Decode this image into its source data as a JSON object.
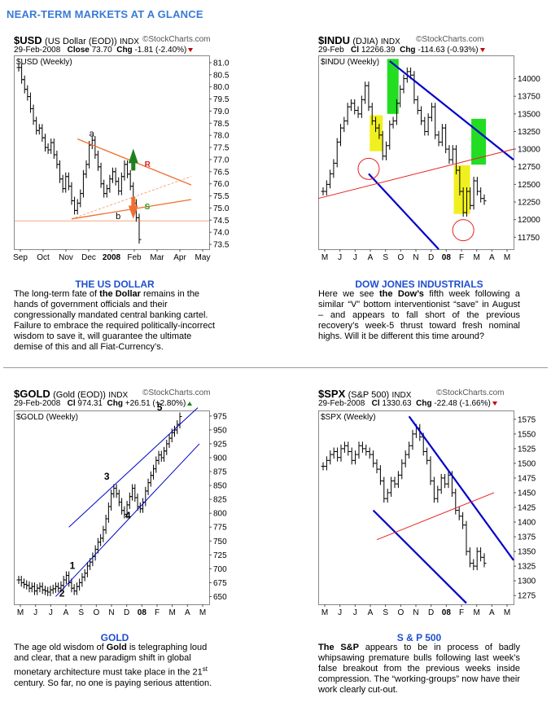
{
  "page_title": "NEAR-TERM MARKETS AT A GLANCE",
  "panels": [
    {
      "symbol": "$USD",
      "desc": "(US Dollar (EOD))",
      "exchange": "INDX",
      "source": "©StockCharts.com",
      "date": "29-Feb-2008",
      "price_label": "Close",
      "price": "73.70",
      "chg_label": "Chg",
      "chg": "-1.81 (-2.40%)",
      "chart_label": "$USD (Weekly)",
      "caption": "THE US DOLLAR",
      "body": [
        {
          "t": "The long-term fate of "
        },
        {
          "t": "the Dollar",
          "b": true
        },
        {
          "t": " remains in the hands of government officials and their congressionally mandated central banking cartel.  Failure to embrace the required politically-incorrect wisdom to save it, will guarantee the ultimate demise of this and all Fiat-Currency’s."
        }
      ]
    },
    {
      "symbol": "$INDU",
      "desc": "(DJIA)",
      "exchange": "INDX",
      "source": "©StockCharts.com",
      "date": "29-Feb",
      "price_label": "Cl",
      "price": "12266.39",
      "chg_label": "Chg",
      "chg": "-114.63 (-0.93%)",
      "chart_label": "$INDU (Weekly)",
      "caption": "DOW JONES INDUSTRIALS",
      "body": [
        {
          "t": "Here we see "
        },
        {
          "t": "the Dow’s",
          "b": true
        },
        {
          "t": " fifth week following a similar “V” bottom interventionist “save” in August – and appears to fall short of the previous recovery’s week-5 thrust toward fresh nominal highs.  Will it be different this time around?"
        }
      ]
    },
    {
      "symbol": "$GOLD",
      "desc": "(Gold (EOD))",
      "exchange": "INDX",
      "source": "©StockCharts.com",
      "date": "29-Feb-2008",
      "price_label": "Cl",
      "price": "974.31",
      "chg_label": "Chg",
      "chg": "+26.51 (+2.80%)",
      "chart_label": "$GOLD (Weekly)",
      "caption": "GOLD",
      "body": [
        {
          "t": "The age old wisdom of "
        },
        {
          "t": "Gold",
          "b": true
        },
        {
          "t": " is telegraphing loud and clear, that a new paradigm shift in global monetary architecture must take place in the 21"
        },
        {
          "t": "st",
          "sup": true
        },
        {
          "t": " century.  So far, no one is paying serious attention."
        }
      ]
    },
    {
      "symbol": "$SPX",
      "desc": "(S&P 500)",
      "exchange": "INDX",
      "source": "©StockCharts.com",
      "date": "29-Feb-2008",
      "price_label": "Cl",
      "price": "1330.63",
      "chg_label": "Chg",
      "chg": "-22.48 (-1.66%)",
      "chart_label": "$SPX (Weekly)",
      "caption": "S & P 500",
      "body": [
        {
          "t": "The S&P",
          "b": true
        },
        {
          "t": " appears to be in process of badly whipsawing premature bulls following last week’s false breakout from the previous weeks inside compression.  The “working-groups” now have their work clearly cut-out."
        }
      ]
    }
  ],
  "chart_data": [
    {
      "type": "ohlc",
      "title": "$USD (Weekly)",
      "ylim": [
        73.3,
        81.3
      ],
      "yticks": [
        81.0,
        80.5,
        80.0,
        79.5,
        79.0,
        78.5,
        78.0,
        77.5,
        77.0,
        76.5,
        76.0,
        75.5,
        75.0,
        74.5,
        74.0,
        73.5
      ],
      "xticks": [
        "Sep",
        "Oct",
        "Nov",
        "Dec",
        "2008",
        "Feb",
        "Mar",
        "Apr",
        "May"
      ],
      "closes": [
        80.8,
        80.3,
        79.9,
        79.6,
        79.1,
        78.6,
        78.2,
        78.3,
        77.9,
        77.5,
        77.4,
        77.7,
        77.2,
        76.8,
        76.2,
        75.8,
        76.3,
        75.9,
        75.3,
        74.9,
        75.2,
        75.6,
        76.4,
        76.8,
        77.6,
        77.8,
        77.2,
        76.7,
        76.0,
        75.6,
        75.8,
        76.2,
        76.5,
        76.1,
        75.7,
        76.3,
        76.8,
        76.4,
        75.9,
        75.2,
        74.6,
        73.7
      ],
      "annotations": [
        "a",
        "b",
        "R",
        "S"
      ],
      "axis_labels_right": true
    },
    {
      "type": "ohlc",
      "title": "$INDU (Weekly)",
      "ylim": [
        11580,
        14330
      ],
      "yticks": [
        14000,
        13750,
        13500,
        13250,
        13000,
        12750,
        12500,
        12250,
        12000,
        11750
      ],
      "xticks": [
        "M",
        "J",
        "J",
        "A",
        "S",
        "O",
        "N",
        "D",
        "08",
        "F",
        "M",
        "A",
        "M"
      ],
      "closes": [
        12400,
        12500,
        12650,
        12800,
        13100,
        13300,
        13400,
        13600,
        13650,
        13550,
        13500,
        13700,
        13900,
        13600,
        13400,
        13300,
        13200,
        12900,
        13050,
        13350,
        13400,
        13650,
        13850,
        14000,
        14100,
        14050,
        13700,
        13550,
        13400,
        13250,
        13450,
        13600,
        13200,
        13100,
        13300,
        13000,
        12850,
        13000,
        12700,
        12400,
        12100,
        12400,
        12200,
        12550,
        12400,
        12300,
        12266
      ],
      "annotations": [
        "green-box",
        "yellow-box",
        "red-circle",
        "blue-channel",
        "red-line"
      ]
    },
    {
      "type": "ohlc",
      "title": "$GOLD (Weekly)",
      "ylim": [
        636,
        985
      ],
      "yticks": [
        975,
        950,
        925,
        900,
        875,
        850,
        825,
        800,
        775,
        750,
        725,
        700,
        675,
        650
      ],
      "xticks": [
        "M",
        "J",
        "J",
        "A",
        "S",
        "O",
        "N",
        "D",
        "08",
        "F",
        "M",
        "A",
        "M"
      ],
      "closes": [
        680,
        675,
        672,
        670,
        665,
        668,
        660,
        665,
        668,
        662,
        660,
        658,
        662,
        664,
        668,
        665,
        670,
        680,
        688,
        675,
        665,
        660,
        668,
        675,
        685,
        692,
        705,
        712,
        722,
        735,
        748,
        755,
        770,
        790,
        812,
        835,
        845,
        835,
        820,
        805,
        798,
        815,
        830,
        845,
        828,
        812,
        808,
        820,
        840,
        855,
        868,
        880,
        895,
        905,
        900,
        912,
        925,
        935,
        945,
        950,
        960,
        974
      ],
      "annotations": [
        "1",
        "2",
        "3",
        "4",
        "5"
      ]
    },
    {
      "type": "ohlc",
      "title": "$SPX (Weekly)",
      "ylim": [
        1260,
        1590
      ],
      "yticks": [
        1575,
        1550,
        1525,
        1500,
        1475,
        1450,
        1425,
        1400,
        1375,
        1350,
        1325,
        1300,
        1275
      ],
      "xticks": [
        "M",
        "J",
        "J",
        "A",
        "S",
        "O",
        "N",
        "D",
        "08",
        "F",
        "M",
        "A",
        "M"
      ],
      "closes": [
        1495,
        1505,
        1515,
        1520,
        1510,
        1525,
        1530,
        1520,
        1505,
        1515,
        1530,
        1525,
        1520,
        1515,
        1500,
        1490,
        1470,
        1440,
        1450,
        1470,
        1465,
        1480,
        1500,
        1515,
        1530,
        1550,
        1560,
        1545,
        1520,
        1505,
        1470,
        1440,
        1455,
        1475,
        1465,
        1480,
        1450,
        1420,
        1410,
        1395,
        1350,
        1330,
        1325,
        1350,
        1340,
        1330
      ],
      "annotations": [
        "blue-channel",
        "red-line"
      ]
    }
  ],
  "colors": {
    "accent": "#3a7bd5",
    "caption": "#1f4fd0",
    "channel": "#0000cc",
    "trend_red": "#e82020",
    "triangle": "#f07030",
    "green_box": "#22dd22",
    "yellow_box": "#f0f020",
    "up": "#208020",
    "down": "#c00000"
  }
}
